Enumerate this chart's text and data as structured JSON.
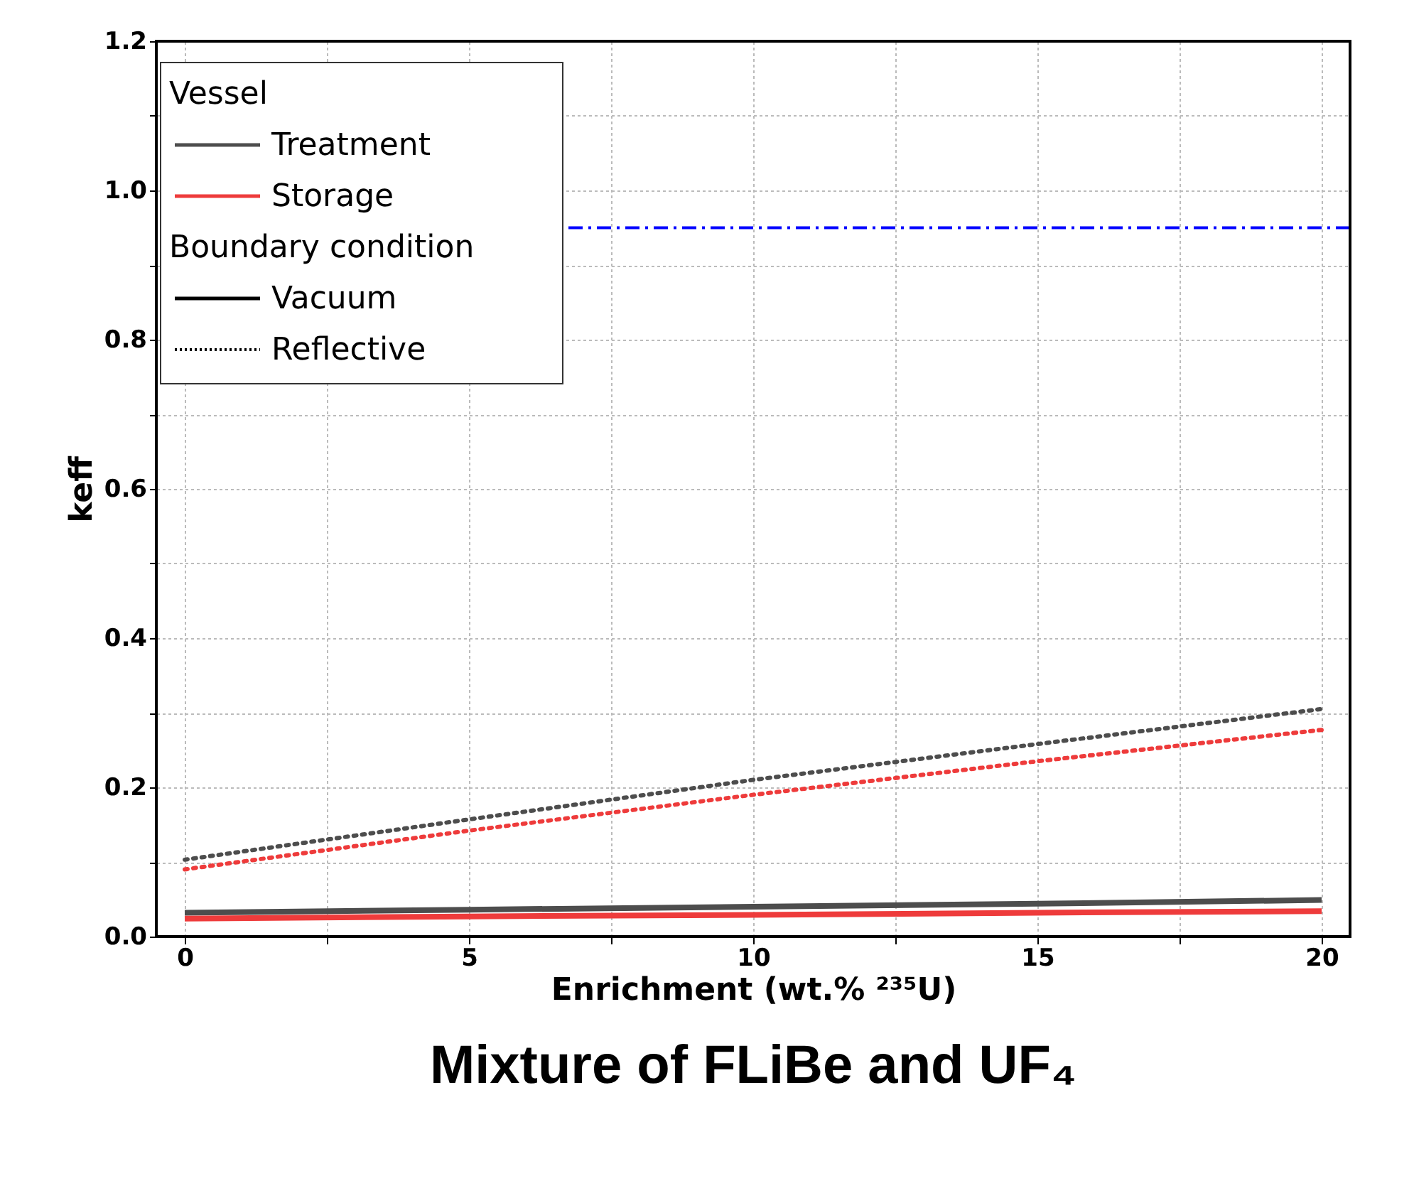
{
  "chart_data": {
    "type": "line",
    "title": "Mixture of FLiBe and UF₄",
    "xlabel": "Enrichment (wt.% ²³⁵U)",
    "ylabel": "keff",
    "legend_title": "Vessel",
    "x": [
      0,
      5,
      10,
      15,
      20
    ],
    "series": [
      {
        "name": "Treatment",
        "color": "#4d4d4d",
        "line_style": "solid",
        "values": [
          0.032,
          0.036,
          0.04,
          0.044,
          0.049
        ]
      },
      {
        "name": "Storage",
        "color": "#ee3b3b",
        "line_style": "solid",
        "values": [
          0.024,
          0.027,
          0.029,
          0.032,
          0.034
        ]
      },
      {
        "color": "#4d4d4d",
        "line_style": "dotted",
        "values": [
          0.103,
          0.157,
          0.21,
          0.258,
          0.305
        ]
      },
      {
        "color": "#ee3b3b",
        "line_style": "dotted",
        "values": [
          0.09,
          0.142,
          0.19,
          0.235,
          0.277
        ]
      },
      {
        "name": "Vacuum",
        "color": "#000000",
        "line_style": "solid",
        "values": [
          null,
          null,
          null,
          null,
          null
        ]
      },
      {
        "name": "Reflective",
        "color": "#000000",
        "line_style": "dotted",
        "values": [
          null,
          null,
          null,
          null,
          null
        ]
      }
    ],
    "annotations": [
      "Boundary condition"
    ],
    "ref_lines": [
      {
        "axis": "y",
        "value": 0.95,
        "color": "#0000ff",
        "line_style": "dashdot"
      }
    ],
    "xlim": [
      -0.5,
      20.5
    ],
    "xticks": [
      0,
      {
        "value": 2.5,
        "label": null
      },
      5,
      {
        "value": 7.5,
        "label": null
      },
      10,
      {
        "value": 12.5,
        "label": null
      },
      15,
      {
        "value": 17.5,
        "label": null
      },
      20
    ],
    "ylim": [
      0,
      1.2
    ],
    "yticks": [
      {
        "value": 0,
        "label": "0.0"
      },
      {
        "value": 0.1,
        "label": null
      },
      {
        "value": 0.2,
        "label": "0.2"
      },
      {
        "value": 0.3,
        "label": null
      },
      {
        "value": 0.4,
        "label": "0.4"
      },
      {
        "value": 0.5,
        "label": null
      },
      {
        "value": 0.6,
        "label": "0.6"
      },
      {
        "value": 0.7,
        "label": null
      },
      {
        "value": 0.8,
        "label": "0.8"
      },
      {
        "value": 0.9,
        "label": null
      },
      {
        "value": 1.0,
        "label": "1.0"
      },
      {
        "value": 1.1,
        "label": null
      },
      {
        "value": 1.2,
        "label": "1.2"
      }
    ],
    "grid": true,
    "legend": "top left"
  }
}
